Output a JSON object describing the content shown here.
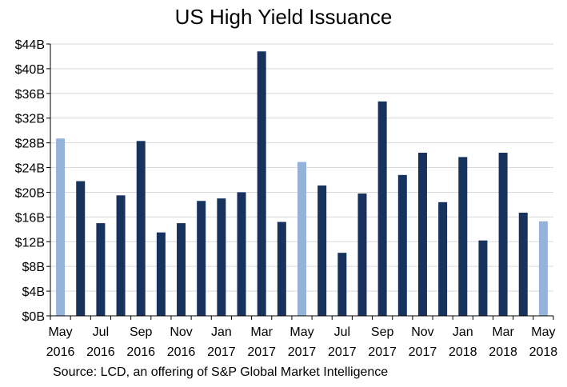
{
  "chart_data": {
    "type": "bar",
    "title": "US High Yield Issuance",
    "xlabel": "",
    "ylabel": "",
    "ylim": [
      0,
      44
    ],
    "y_ticks": [
      "$0B",
      "$4B",
      "$8B",
      "$12B",
      "$16B",
      "$20B",
      "$24B",
      "$28B",
      "$32B",
      "$36B",
      "$40B",
      "$44B"
    ],
    "grid": true,
    "legend": "none",
    "colors": {
      "dark": "#17325c",
      "light": "#95b2d8",
      "grid": "#d9d9d9",
      "axis": "#000000"
    },
    "categories": [
      "May 2016",
      "Jun 2016",
      "Jul 2016",
      "Aug 2016",
      "Sep 2016",
      "Oct 2016",
      "Nov 2016",
      "Dec 2016",
      "Jan 2017",
      "Feb 2017",
      "Mar 2017",
      "Apr 2017",
      "May 2017",
      "Jun 2017",
      "Jul 2017",
      "Aug 2017",
      "Sep 2017",
      "Oct 2017",
      "Nov 2017",
      "Dec 2017",
      "Jan 2018",
      "Feb 2018",
      "Mar 2018",
      "Apr 2018",
      "May 2018"
    ],
    "values": [
      28.7,
      21.8,
      15.0,
      19.5,
      28.3,
      13.5,
      15.0,
      18.6,
      19.0,
      20.0,
      42.8,
      15.2,
      24.9,
      21.1,
      10.2,
      19.8,
      34.7,
      22.8,
      26.4,
      18.4,
      25.7,
      12.2,
      26.4,
      16.7,
      15.3
    ],
    "highlight": [
      true,
      false,
      false,
      false,
      false,
      false,
      false,
      false,
      false,
      false,
      false,
      false,
      true,
      false,
      false,
      false,
      false,
      false,
      false,
      false,
      false,
      false,
      false,
      false,
      true
    ],
    "x_tick_labels": [
      {
        "month": "May",
        "year": "2016"
      },
      {
        "month": "Jul",
        "year": "2016"
      },
      {
        "month": "Sep",
        "year": "2016"
      },
      {
        "month": "Nov",
        "year": "2016"
      },
      {
        "month": "Jan",
        "year": "2017"
      },
      {
        "month": "Mar",
        "year": "2017"
      },
      {
        "month": "May",
        "year": "2017"
      },
      {
        "month": "Jul",
        "year": "2017"
      },
      {
        "month": "Sep",
        "year": "2017"
      },
      {
        "month": "Nov",
        "year": "2017"
      },
      {
        "month": "Jan",
        "year": "2018"
      },
      {
        "month": "Mar",
        "year": "2018"
      },
      {
        "month": "May",
        "year": "2018"
      }
    ],
    "source": "Source: LCD, an offering of S&P Global Market Intelligence"
  }
}
